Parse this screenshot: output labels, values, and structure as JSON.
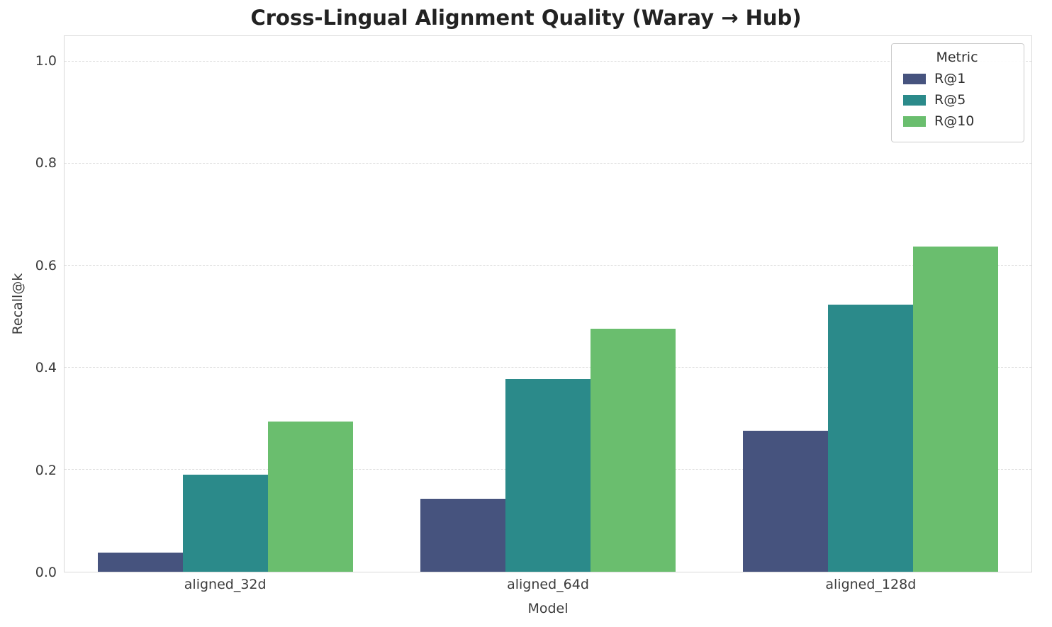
{
  "chart_data": {
    "type": "bar",
    "title": "Cross-Lingual Alignment Quality (Waray → Hub)",
    "xlabel": "Model",
    "ylabel": "Recall@k",
    "categories": [
      "aligned_32d",
      "aligned_64d",
      "aligned_128d"
    ],
    "series": [
      {
        "name": "R@1",
        "color": "#46537e",
        "values": [
          0.038,
          0.143,
          0.277
        ]
      },
      {
        "name": "R@5",
        "color": "#2b8a8a",
        "values": [
          0.19,
          0.378,
          0.524
        ]
      },
      {
        "name": "R@10",
        "color": "#6abe6e",
        "values": [
          0.295,
          0.477,
          0.638
        ]
      }
    ],
    "legend_title": "Metric",
    "legend_position": "upper right",
    "ylim": [
      0,
      1.05
    ],
    "yticks": [
      "0.0",
      "0.2",
      "0.4",
      "0.6",
      "0.8",
      "1.0"
    ],
    "grid": true
  }
}
